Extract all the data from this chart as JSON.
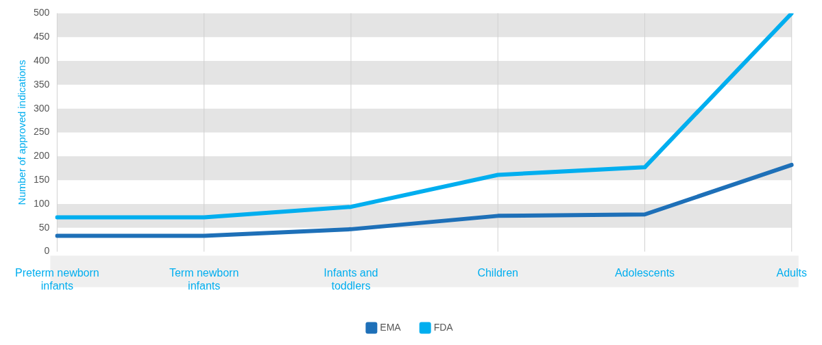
{
  "chart_data": {
    "type": "line",
    "ylabel": "Number of approved indications",
    "categories": [
      "Preterm newborn infants",
      "Term newborn infants",
      "Infants and toddlers",
      "Children",
      "Adolescents",
      "Adults"
    ],
    "series": [
      {
        "name": "EMA",
        "color": "#1e70b8",
        "values": [
          33,
          33,
          47,
          75,
          78,
          182
        ]
      },
      {
        "name": "FDA",
        "color": "#00aeef",
        "values": [
          72,
          72,
          94,
          161,
          177,
          500
        ]
      }
    ],
    "ylim": [
      0,
      500
    ],
    "yticks": [
      0,
      50,
      100,
      150,
      200,
      250,
      300,
      350,
      400,
      450,
      500
    ],
    "grid": true,
    "legend": "bottom",
    "marker": "none",
    "line_style": "solid"
  }
}
